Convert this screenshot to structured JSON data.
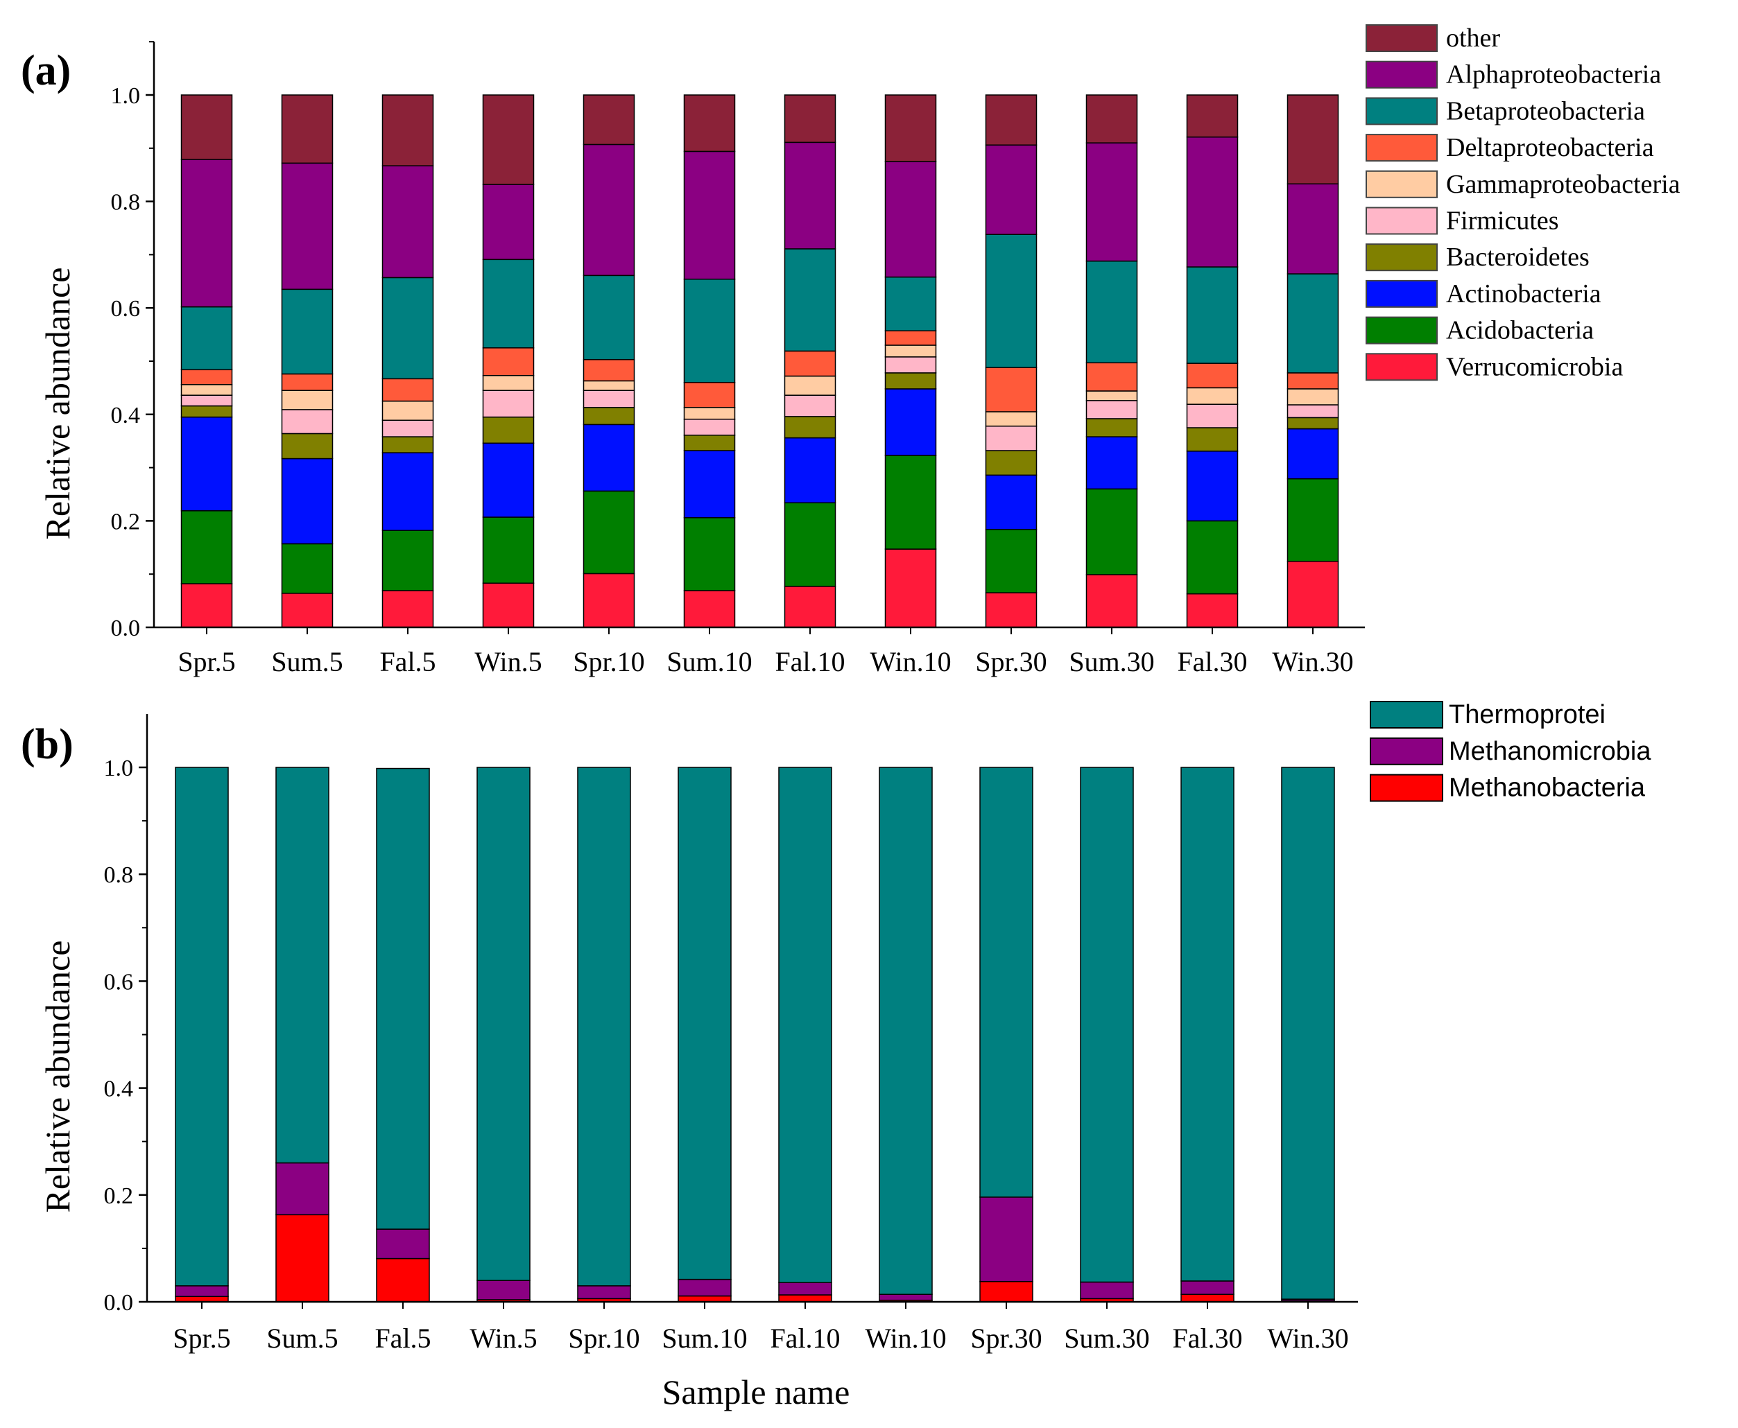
{
  "chart_data": [
    {
      "type": "bar",
      "stacked": true,
      "panel_label": "(a)",
      "xlabel": "",
      "ylabel": "Relative abundance",
      "ylim": [
        0,
        1.0
      ],
      "yticks": [
        "0.0",
        "0.2",
        "0.4",
        "0.6",
        "0.8",
        "1.0"
      ],
      "categories": [
        "Spr.5",
        "Sum.5",
        "Fal.5",
        "Win.5",
        "Spr.10",
        "Sum.10",
        "Fal.10",
        "Win.10",
        "Spr.30",
        "Sum.30",
        "Fal.30",
        "Win.30"
      ],
      "legend_position": "right",
      "series": [
        {
          "name": "Verrucomicrobia",
          "color": "#ff1a3a",
          "values": [
            0.082,
            0.064,
            0.069,
            0.083,
            0.101,
            0.069,
            0.077,
            0.147,
            0.065,
            0.099,
            0.063,
            0.124
          ]
        },
        {
          "name": "Acidobacteria",
          "color": "#007f00",
          "values": [
            0.137,
            0.093,
            0.113,
            0.124,
            0.155,
            0.137,
            0.157,
            0.176,
            0.119,
            0.161,
            0.137,
            0.155
          ]
        },
        {
          "name": "Actinobacteria",
          "color": "#0010ff",
          "values": [
            0.176,
            0.16,
            0.146,
            0.139,
            0.125,
            0.126,
            0.122,
            0.125,
            0.102,
            0.098,
            0.131,
            0.094
          ]
        },
        {
          "name": "Bacteroidetes",
          "color": "#808000",
          "values": [
            0.021,
            0.047,
            0.03,
            0.049,
            0.032,
            0.029,
            0.04,
            0.03,
            0.046,
            0.034,
            0.044,
            0.021
          ]
        },
        {
          "name": "Firmicutes",
          "color": "#ffb6c8",
          "values": [
            0.02,
            0.045,
            0.031,
            0.05,
            0.032,
            0.03,
            0.04,
            0.03,
            0.046,
            0.034,
            0.044,
            0.024
          ]
        },
        {
          "name": "Gammaproteobacteria",
          "color": "#ffcca3",
          "values": [
            0.02,
            0.036,
            0.036,
            0.028,
            0.018,
            0.022,
            0.036,
            0.022,
            0.027,
            0.018,
            0.031,
            0.03
          ]
        },
        {
          "name": "Deltaproteobacteria",
          "color": "#ff5a3a",
          "values": [
            0.028,
            0.031,
            0.042,
            0.052,
            0.04,
            0.047,
            0.047,
            0.027,
            0.083,
            0.053,
            0.046,
            0.03
          ]
        },
        {
          "name": "Betaproteobacteria",
          "color": "#008080",
          "values": [
            0.118,
            0.159,
            0.19,
            0.166,
            0.158,
            0.194,
            0.192,
            0.101,
            0.25,
            0.191,
            0.181,
            0.186
          ]
        },
        {
          "name": "Alphaproteobacteria",
          "color": "#8b0082",
          "values": [
            0.277,
            0.237,
            0.21,
            0.141,
            0.246,
            0.24,
            0.2,
            0.217,
            0.168,
            0.222,
            0.244,
            0.169
          ]
        },
        {
          "name": "other",
          "color": "#8b2238",
          "values": [
            0.121,
            0.128,
            0.133,
            0.168,
            0.093,
            0.106,
            0.089,
            0.125,
            0.094,
            0.09,
            0.079,
            0.167
          ]
        }
      ],
      "legend_order": [
        "other",
        "Alphaproteobacteria",
        "Betaproteobacteria",
        "Deltaproteobacteria",
        "Gammaproteobacteria",
        "Firmicutes",
        "Bacteroidetes",
        "Actinobacteria",
        "Acidobacteria",
        "Verrucomicrobia"
      ]
    },
    {
      "type": "bar",
      "stacked": true,
      "panel_label": "(b)",
      "xlabel": "Sample name",
      "ylabel": "Relative abundance",
      "ylim": [
        0,
        1.0
      ],
      "yticks": [
        "0.0",
        "0.2",
        "0.4",
        "0.6",
        "0.8",
        "1.0"
      ],
      "categories": [
        "Spr.5",
        "Sum.5",
        "Fal.5",
        "Win.5",
        "Spr.10",
        "Sum.10",
        "Fal.10",
        "Win.10",
        "Spr.30",
        "Sum.30",
        "Fal.30",
        "Win.30"
      ],
      "legend_position": "right",
      "series": [
        {
          "name": "Methanobacteria",
          "color": "#ff0000",
          "values": [
            0.01,
            0.163,
            0.081,
            0.004,
            0.006,
            0.011,
            0.013,
            0.003,
            0.038,
            0.006,
            0.014,
            0.002
          ]
        },
        {
          "name": "Methanomicrobia",
          "color": "#8b0082",
          "values": [
            0.02,
            0.097,
            0.055,
            0.036,
            0.024,
            0.031,
            0.023,
            0.011,
            0.158,
            0.031,
            0.025,
            0.003
          ]
        },
        {
          "name": "Thermoprotei",
          "color": "#008080",
          "values": [
            0.97,
            0.74,
            0.862,
            0.96,
            0.97,
            0.958,
            0.964,
            0.986,
            0.804,
            0.963,
            0.961,
            0.995
          ]
        }
      ],
      "legend_order": [
        "Thermoprotei",
        "Methanomicrobia",
        "Methanobacteria"
      ]
    }
  ]
}
